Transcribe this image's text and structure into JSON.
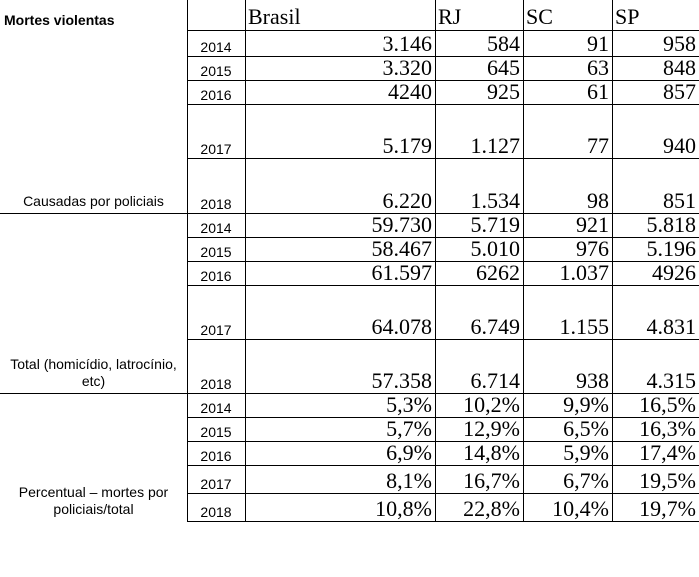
{
  "table": {
    "header": {
      "title": "Mortes violentas",
      "columns": [
        "Brasil",
        "RJ",
        "SC",
        "SP"
      ]
    },
    "groups": [
      {
        "label": "Causadas por policiais",
        "rows": [
          {
            "year": "2014",
            "values": [
              "3.146",
              "584",
              "91",
              "958"
            ]
          },
          {
            "year": "2015",
            "values": [
              "3.320",
              "645",
              "63",
              "848"
            ]
          },
          {
            "year": "2016",
            "values": [
              "4240",
              "925",
              "61",
              "857"
            ]
          },
          {
            "year": "2017",
            "values": [
              "5.179",
              "1.127",
              "77",
              "940"
            ]
          },
          {
            "year": "2018",
            "values": [
              "6.220",
              "1.534",
              "98",
              "851"
            ]
          }
        ]
      },
      {
        "label": "Total (homicídio, latrocínio, etc)",
        "rows": [
          {
            "year": "2014",
            "values": [
              "59.730",
              "5.719",
              "921",
              "5.818"
            ]
          },
          {
            "year": "2015",
            "values": [
              "58.467",
              "5.010",
              "976",
              "5.196"
            ]
          },
          {
            "year": "2016",
            "values": [
              "61.597",
              "6262",
              "1.037",
              "4926"
            ]
          },
          {
            "year": "2017",
            "values": [
              "64.078",
              "6.749",
              "1.155",
              "4.831"
            ]
          },
          {
            "year": "2018",
            "values": [
              "57.358",
              "6.714",
              "938",
              "4.315"
            ]
          }
        ]
      },
      {
        "label": "Percentual – mortes por policiais/total",
        "rows": [
          {
            "year": "2014",
            "values": [
              "5,3%",
              "10,2%",
              "9,9%",
              "16,5%"
            ]
          },
          {
            "year": "2015",
            "values": [
              "5,7%",
              "12,9%",
              "6,5%",
              "16,3%"
            ]
          },
          {
            "year": "2016",
            "values": [
              "6,9%",
              "14,8%",
              "5,9%",
              "17,4%"
            ]
          },
          {
            "year": "2017",
            "values": [
              "8,1%",
              "16,7%",
              "6,7%",
              "19,5%"
            ]
          },
          {
            "year": "2018",
            "values": [
              "10,8%",
              "22,8%",
              "10,4%",
              "19,7%"
            ]
          }
        ]
      }
    ]
  }
}
